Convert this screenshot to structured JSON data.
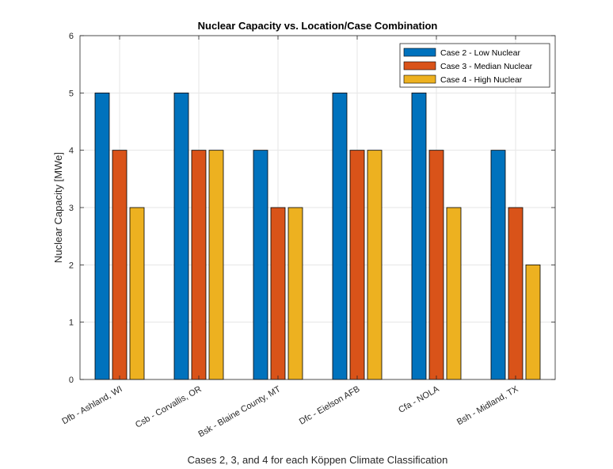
{
  "chart_data": {
    "type": "bar",
    "title": "Nuclear Capacity vs. Location/Case Combination",
    "xlabel": "Cases  2, 3, and 4 for each Köppen Climate Classification",
    "ylabel": "Nuclear Capacity [MWe]",
    "categories": [
      "Dfb - Ashland, WI",
      "Csb - Corvallis, OR",
      "Bsk - Blaine County, MT",
      "Dfc - Eielson AFB",
      "Cfa - NOLA",
      "Bsh - Midland, TX"
    ],
    "series": [
      {
        "name": "Case 2 - Low Nuclear",
        "color": "#0072bd",
        "values": [
          5,
          5,
          4,
          5,
          5,
          4
        ]
      },
      {
        "name": "Case 3 - Median Nuclear",
        "color": "#d95319",
        "values": [
          4,
          4,
          3,
          4,
          4,
          3
        ]
      },
      {
        "name": "Case 4 - High Nuclear",
        "color": "#edb120",
        "values": [
          3,
          4,
          3,
          4,
          3,
          2
        ]
      }
    ],
    "ylim": [
      0,
      6
    ],
    "yticks": [
      "0",
      "1",
      "2",
      "3",
      "4",
      "5",
      "6"
    ],
    "grid": true,
    "legend_position": "top-right"
  }
}
